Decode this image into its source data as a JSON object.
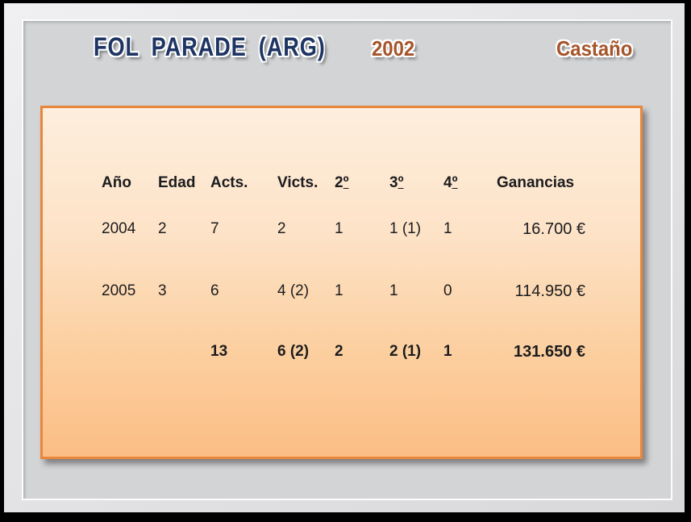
{
  "header": {
    "name": "FOL PARADE (ARG)",
    "birth_year": "2002",
    "coat": "Castaño"
  },
  "table": {
    "columns": [
      {
        "text": "Año"
      },
      {
        "text": "Edad"
      },
      {
        "text": "Acts."
      },
      {
        "text": "Victs."
      },
      {
        "text": "2",
        "ordinal": "º"
      },
      {
        "text": "3",
        "ordinal": "º"
      },
      {
        "text": "4",
        "ordinal": "º"
      },
      {
        "text": "Ganancias"
      }
    ],
    "rows": [
      {
        "ano": "2004",
        "edad": "2",
        "acts": "7",
        "victs": "2",
        "segundos": "1",
        "terceros": "1 (1)",
        "cuartos": "1",
        "ganancias": "16.700 €"
      },
      {
        "ano": "2005",
        "edad": "3",
        "acts": "6",
        "victs": "4 (2)",
        "segundos": "1",
        "terceros": "1",
        "cuartos": "0",
        "ganancias": "114.950 €"
      }
    ],
    "totals": {
      "acts": "13",
      "victs": "6 (2)",
      "segundos": "2",
      "terceros": "2 (1)",
      "cuartos": "1",
      "ganancias": "131.650 €"
    }
  },
  "colors": {
    "title_navy": "#1e3564",
    "title_brown": "#a5552b",
    "panel_border": "#e8873b",
    "panel_gradient_top": "#fdeedd",
    "panel_gradient_bottom": "#fbbd85",
    "slide_background": "#d3d4d6"
  }
}
